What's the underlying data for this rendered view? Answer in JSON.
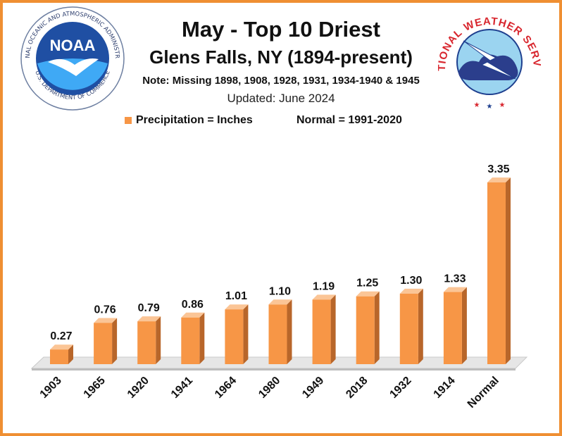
{
  "header": {
    "title": "May - Top 10 Driest",
    "subtitle": "Glens Falls, NY (1894-present)",
    "note": "Note: Missing 1898, 1908, 1928, 1931, 1934-1940 & 1945",
    "updated": "Updated: June 2024",
    "legend_label": "Precipitation = Inches",
    "normal_note": "Normal = 1991-2020"
  },
  "logos": {
    "noaa_text": "NOAA",
    "noaa_ring_top": "NATIONAL OCEANIC AND ATMOSPHERIC ADMINISTRATION",
    "noaa_ring_bottom": "U.S. DEPARTMENT OF COMMERCE",
    "nws_ring": "NATIONAL WEATHER SERVICE"
  },
  "colors": {
    "bar_front": "#f79646",
    "bar_side": "#b8662a",
    "bar_top": "#fbc596",
    "border": "#ef8f32",
    "floor": "#e6e6e6"
  },
  "chart_data": {
    "type": "bar",
    "title": "May - Top 10 Driest",
    "categories": [
      "1903",
      "1965",
      "1920",
      "1941",
      "1964",
      "1980",
      "1949",
      "2018",
      "1932",
      "1914",
      "Normal"
    ],
    "values": [
      0.27,
      0.76,
      0.79,
      0.86,
      1.01,
      1.1,
      1.19,
      1.25,
      1.3,
      1.33,
      3.35
    ],
    "value_labels": [
      "0.27",
      "0.76",
      "0.79",
      "0.86",
      "1.01",
      "1.10",
      "1.19",
      "1.25",
      "1.30",
      "1.33",
      "3.35"
    ],
    "series": [
      {
        "name": "Precipitation = Inches",
        "values": [
          0.27,
          0.76,
          0.79,
          0.86,
          1.01,
          1.1,
          1.19,
          1.25,
          1.3,
          1.33,
          3.35
        ]
      }
    ],
    "xlabel": "",
    "ylabel": "",
    "ylim": [
      0,
      3.35
    ],
    "grid": false,
    "legend": "top"
  }
}
